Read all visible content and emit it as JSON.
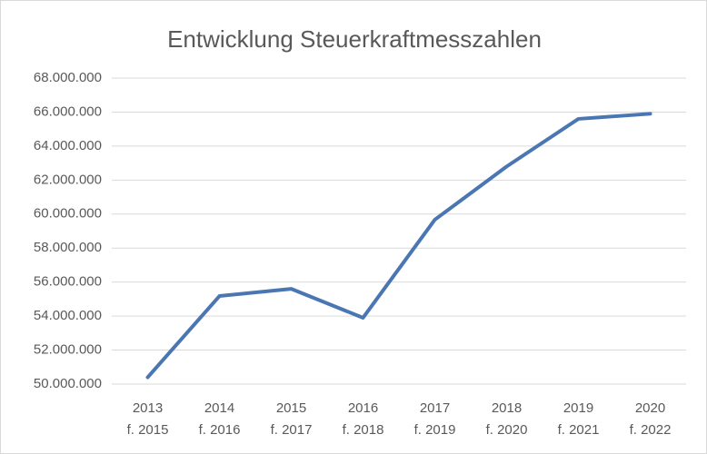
{
  "chart_data": {
    "type": "line",
    "title": "Entwicklung Steuerkraftmesszahlen",
    "categories": [
      [
        "2013",
        "f. 2015"
      ],
      [
        "2014",
        "f. 2016"
      ],
      [
        "2015",
        "f. 2017"
      ],
      [
        "2016",
        "f. 2018"
      ],
      [
        "2017",
        "f. 2019"
      ],
      [
        "2018",
        "f. 2020"
      ],
      [
        "2019",
        "f. 2021"
      ],
      [
        "2020",
        "f. 2022"
      ]
    ],
    "values": [
      50400000,
      55180000,
      55600000,
      53900000,
      59670000,
      62800000,
      65600000,
      65900000
    ],
    "color": "#4a76b2",
    "ylim": [
      50000000,
      68000000
    ],
    "yticks": [
      {
        "value": 50000000,
        "label": "50.000.000"
      },
      {
        "value": 52000000,
        "label": "52.000.000"
      },
      {
        "value": 54000000,
        "label": "54.000.000"
      },
      {
        "value": 56000000,
        "label": "56.000.000"
      },
      {
        "value": 58000000,
        "label": "58.000.000"
      },
      {
        "value": 60000000,
        "label": "60.000.000"
      },
      {
        "value": 62000000,
        "label": "62.000.000"
      },
      {
        "value": 64000000,
        "label": "64.000.000"
      },
      {
        "value": 66000000,
        "label": "66.000.000"
      },
      {
        "value": 68000000,
        "label": "68.000.000"
      }
    ],
    "grid": true
  }
}
